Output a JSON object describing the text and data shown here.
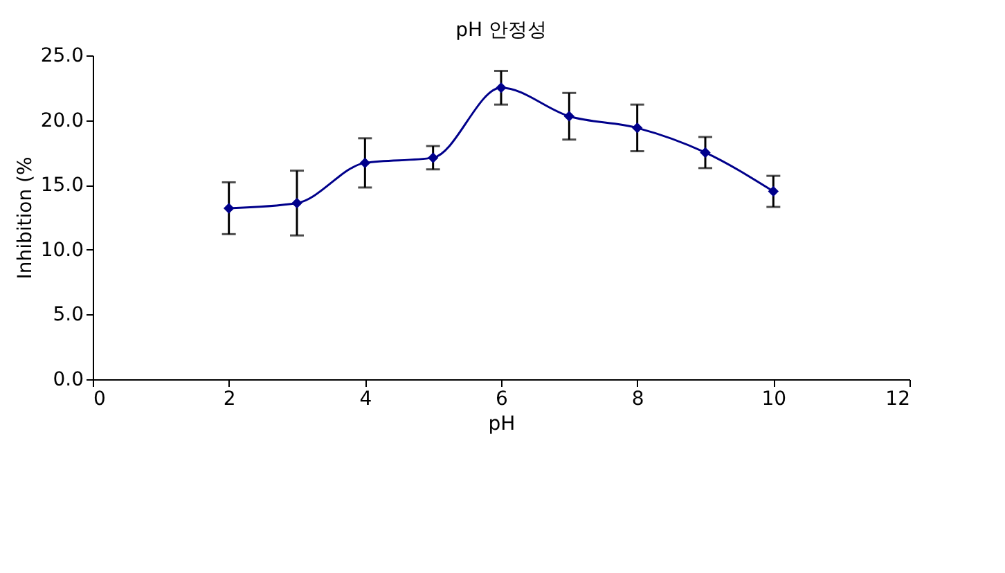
{
  "chart_data": {
    "type": "line",
    "title": "pH 안정성",
    "xlabel": "pH",
    "ylabel": "Inhibition (%",
    "x": [
      2,
      3,
      4,
      5,
      6,
      7,
      8,
      9,
      10
    ],
    "series": [
      {
        "color": "#00008b",
        "values": [
          13.2,
          13.6,
          16.7,
          17.1,
          22.5,
          20.3,
          19.4,
          17.5,
          14.5
        ],
        "errors": [
          2.0,
          2.5,
          1.9,
          0.9,
          1.3,
          1.8,
          1.8,
          1.2,
          1.2
        ]
      }
    ],
    "xlim": [
      0,
      12
    ],
    "xticks": [
      0,
      2,
      4,
      6,
      8,
      10,
      12
    ],
    "ylim": [
      0,
      25
    ],
    "yticks": [
      {
        "value": 0,
        "label": "0.0"
      },
      {
        "value": 5,
        "label": "5.0"
      },
      {
        "value": 10,
        "label": "10.0"
      },
      {
        "value": 15,
        "label": "15.0"
      },
      {
        "value": 20,
        "label": "20.0"
      },
      {
        "value": 25,
        "label": "25.0"
      }
    ],
    "grid": false,
    "marker": "diamond",
    "line_style": "solid"
  }
}
